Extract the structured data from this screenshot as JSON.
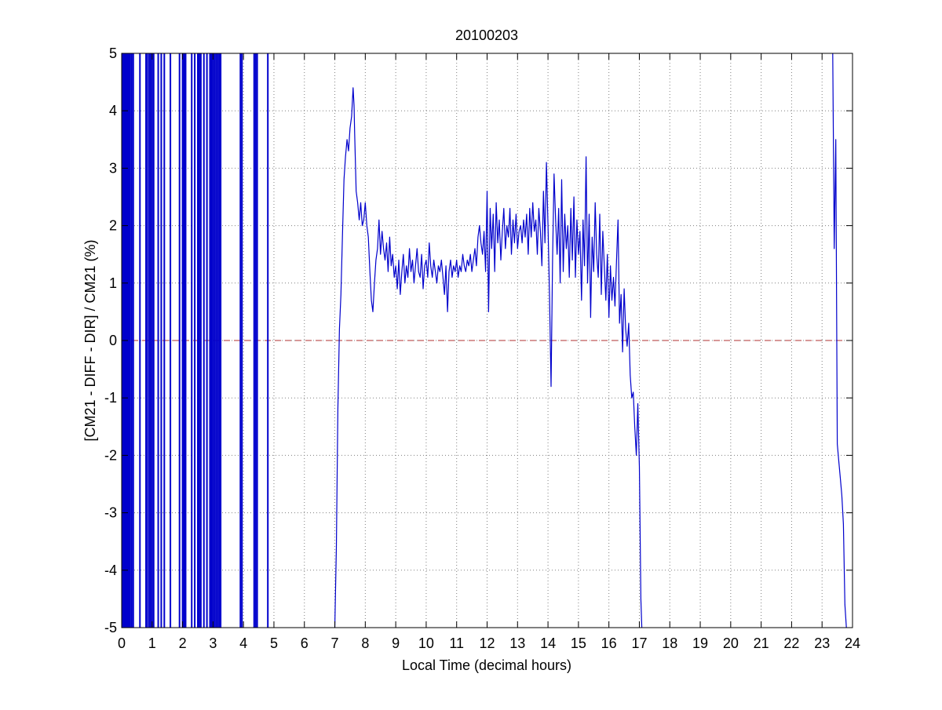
{
  "chart_data": {
    "type": "line",
    "title": "20100203",
    "xlabel": "Local Time (decimal hours)",
    "ylabel": "[CM21 - DIFF - DIR] / CM21 (%)",
    "xlim": [
      0,
      24
    ],
    "ylim": [
      -5,
      5
    ],
    "x_ticks": [
      0,
      1,
      2,
      3,
      4,
      5,
      6,
      7,
      8,
      9,
      10,
      11,
      12,
      13,
      14,
      15,
      16,
      17,
      18,
      19,
      20,
      21,
      22,
      23,
      24
    ],
    "x_tick_labels": [
      "0",
      "1",
      "2",
      "3",
      "4",
      "5",
      "6",
      "7",
      "8",
      "9",
      "10",
      "11",
      "12",
      "13",
      "14",
      "15",
      "16",
      "17",
      "18",
      "19",
      "20",
      "21",
      "22",
      "23",
      "24"
    ],
    "y_ticks": [
      -5,
      -4,
      -3,
      -2,
      -1,
      0,
      1,
      2,
      3,
      4,
      5
    ],
    "y_tick_labels": [
      "-5",
      "-4",
      "-3",
      "-2",
      "-1",
      "0",
      "1",
      "2",
      "3",
      "4",
      "5"
    ],
    "grid": true,
    "colors": {
      "series": "#0000cc",
      "reference": "#b03030",
      "grid": "#808080",
      "axes": "#000000"
    },
    "reference_line": {
      "y": 0,
      "style": "dashed"
    },
    "night_spikes_x": [
      0.02,
      0.05,
      0.09,
      0.12,
      0.16,
      0.2,
      0.24,
      0.28,
      0.33,
      0.38,
      0.6,
      0.8,
      0.84,
      0.9,
      0.95,
      1.0,
      1.05,
      1.2,
      1.3,
      1.4,
      1.6,
      1.9,
      2.0,
      2.05,
      2.1,
      2.3,
      2.4,
      2.5,
      2.55,
      2.6,
      2.7,
      2.8,
      2.9,
      2.95,
      3.0,
      3.05,
      3.1,
      3.15,
      3.2,
      3.25,
      3.9,
      3.95,
      4.35,
      4.4,
      4.45,
      4.8
    ],
    "series": [
      {
        "values": [
          [
            7.0,
            -5.0
          ],
          [
            7.05,
            -3.6
          ],
          [
            7.1,
            -1.2
          ],
          [
            7.15,
            0.2
          ],
          [
            7.2,
            0.8
          ],
          [
            7.25,
            1.8
          ],
          [
            7.3,
            2.8
          ],
          [
            7.35,
            3.2
          ],
          [
            7.4,
            3.5
          ],
          [
            7.45,
            3.3
          ],
          [
            7.5,
            3.7
          ],
          [
            7.55,
            3.9
          ],
          [
            7.6,
            4.4
          ],
          [
            7.63,
            4.1
          ],
          [
            7.65,
            3.6
          ],
          [
            7.7,
            2.6
          ],
          [
            7.75,
            2.4
          ],
          [
            7.8,
            2.1
          ],
          [
            7.85,
            2.4
          ],
          [
            7.9,
            2.0
          ],
          [
            7.95,
            2.1
          ],
          [
            8.0,
            2.4
          ],
          [
            8.05,
            2.0
          ],
          [
            8.1,
            1.8
          ],
          [
            8.15,
            1.2
          ],
          [
            8.2,
            0.7
          ],
          [
            8.25,
            0.5
          ],
          [
            8.3,
            1.0
          ],
          [
            8.35,
            1.4
          ],
          [
            8.4,
            1.6
          ],
          [
            8.45,
            2.1
          ],
          [
            8.5,
            1.5
          ],
          [
            8.55,
            1.9
          ],
          [
            8.6,
            1.6
          ],
          [
            8.65,
            1.4
          ],
          [
            8.7,
            1.7
          ],
          [
            8.75,
            1.2
          ],
          [
            8.8,
            1.8
          ],
          [
            8.85,
            1.3
          ],
          [
            8.9,
            1.5
          ],
          [
            8.95,
            1.1
          ],
          [
            9.0,
            1.3
          ],
          [
            9.05,
            0.9
          ],
          [
            9.1,
            1.4
          ],
          [
            9.15,
            0.8
          ],
          [
            9.2,
            1.2
          ],
          [
            9.25,
            1.5
          ],
          [
            9.3,
            1.0
          ],
          [
            9.35,
            1.3
          ],
          [
            9.4,
            1.1
          ],
          [
            9.45,
            1.6
          ],
          [
            9.5,
            1.2
          ],
          [
            9.55,
            1.4
          ],
          [
            9.6,
            1.0
          ],
          [
            9.65,
            1.3
          ],
          [
            9.7,
            1.6
          ],
          [
            9.75,
            1.2
          ],
          [
            9.8,
            1.1
          ],
          [
            9.85,
            1.5
          ],
          [
            9.9,
            0.9
          ],
          [
            9.95,
            1.3
          ],
          [
            10.0,
            1.4
          ],
          [
            10.05,
            1.1
          ],
          [
            10.1,
            1.7
          ],
          [
            10.15,
            1.3
          ],
          [
            10.2,
            1.1
          ],
          [
            10.25,
            1.4
          ],
          [
            10.3,
            1.2
          ],
          [
            10.35,
            1.0
          ],
          [
            10.4,
            1.3
          ],
          [
            10.45,
            1.2
          ],
          [
            10.5,
            1.4
          ],
          [
            10.55,
            1.1
          ],
          [
            10.6,
            0.8
          ],
          [
            10.65,
            1.3
          ],
          [
            10.7,
            0.5
          ],
          [
            10.75,
            1.2
          ],
          [
            10.8,
            1.4
          ],
          [
            10.85,
            1.1
          ],
          [
            10.9,
            1.3
          ],
          [
            10.95,
            1.2
          ],
          [
            11.0,
            1.4
          ],
          [
            11.05,
            1.1
          ],
          [
            11.1,
            1.3
          ],
          [
            11.15,
            1.2
          ],
          [
            11.2,
            1.5
          ],
          [
            11.25,
            1.3
          ],
          [
            11.3,
            1.2
          ],
          [
            11.35,
            1.4
          ],
          [
            11.4,
            1.3
          ],
          [
            11.45,
            1.5
          ],
          [
            11.5,
            1.2
          ],
          [
            11.55,
            1.4
          ],
          [
            11.6,
            1.6
          ],
          [
            11.65,
            1.3
          ],
          [
            11.7,
            1.8
          ],
          [
            11.75,
            2.0
          ],
          [
            11.8,
            1.7
          ],
          [
            11.85,
            1.5
          ],
          [
            11.9,
            1.9
          ],
          [
            11.95,
            1.2
          ],
          [
            12.0,
            2.6
          ],
          [
            12.05,
            0.5
          ],
          [
            12.1,
            2.3
          ],
          [
            12.15,
            1.6
          ],
          [
            12.2,
            2.2
          ],
          [
            12.25,
            1.2
          ],
          [
            12.3,
            2.4
          ],
          [
            12.35,
            1.7
          ],
          [
            12.4,
            2.1
          ],
          [
            12.45,
            1.4
          ],
          [
            12.5,
            1.9
          ],
          [
            12.55,
            2.3
          ],
          [
            12.6,
            1.6
          ],
          [
            12.65,
            2.0
          ],
          [
            12.7,
            1.8
          ],
          [
            12.75,
            2.3
          ],
          [
            12.8,
            1.5
          ],
          [
            12.85,
            2.1
          ],
          [
            12.9,
            1.7
          ],
          [
            12.95,
            2.2
          ],
          [
            13.0,
            1.6
          ],
          [
            13.05,
            1.9
          ],
          [
            13.1,
            2.0
          ],
          [
            13.15,
            1.7
          ],
          [
            13.2,
            2.1
          ],
          [
            13.25,
            1.8
          ],
          [
            13.3,
            2.2
          ],
          [
            13.35,
            1.5
          ],
          [
            13.4,
            2.3
          ],
          [
            13.45,
            1.8
          ],
          [
            13.5,
            2.4
          ],
          [
            13.55,
            1.9
          ],
          [
            13.6,
            2.1
          ],
          [
            13.65,
            1.5
          ],
          [
            13.7,
            2.3
          ],
          [
            13.75,
            1.9
          ],
          [
            13.8,
            1.3
          ],
          [
            13.85,
            2.6
          ],
          [
            13.9,
            1.7
          ],
          [
            13.95,
            3.1
          ],
          [
            14.0,
            2.0
          ],
          [
            14.05,
            0.8
          ],
          [
            14.1,
            -0.8
          ],
          [
            14.15,
            1.4
          ],
          [
            14.2,
            2.9
          ],
          [
            14.25,
            2.1
          ],
          [
            14.3,
            1.5
          ],
          [
            14.35,
            2.3
          ],
          [
            14.4,
            1.0
          ],
          [
            14.45,
            2.8
          ],
          [
            14.5,
            1.2
          ],
          [
            14.55,
            2.2
          ],
          [
            14.6,
            1.6
          ],
          [
            14.65,
            2.0
          ],
          [
            14.7,
            1.1
          ],
          [
            14.75,
            2.3
          ],
          [
            14.8,
            1.4
          ],
          [
            14.85,
            2.5
          ],
          [
            14.9,
            1.1
          ],
          [
            14.95,
            2.1
          ],
          [
            15.0,
            1.5
          ],
          [
            15.05,
            1.9
          ],
          [
            15.1,
            0.7
          ],
          [
            15.15,
            2.1
          ],
          [
            15.2,
            1.3
          ],
          [
            15.25,
            3.2
          ],
          [
            15.3,
            1.0
          ],
          [
            15.35,
            2.2
          ],
          [
            15.4,
            0.4
          ],
          [
            15.45,
            1.8
          ],
          [
            15.5,
            1.2
          ],
          [
            15.55,
            2.4
          ],
          [
            15.6,
            1.5
          ],
          [
            15.65,
            1.1
          ],
          [
            15.7,
            2.2
          ],
          [
            15.75,
            0.8
          ],
          [
            15.8,
            1.9
          ],
          [
            15.85,
            1.3
          ],
          [
            15.9,
            0.7
          ],
          [
            15.95,
            1.5
          ],
          [
            16.0,
            0.4
          ],
          [
            16.05,
            1.3
          ],
          [
            16.1,
            0.7
          ],
          [
            16.15,
            1.1
          ],
          [
            16.2,
            0.6
          ],
          [
            16.25,
            1.4
          ],
          [
            16.3,
            2.1
          ],
          [
            16.35,
            0.3
          ],
          [
            16.4,
            0.8
          ],
          [
            16.45,
            -0.2
          ],
          [
            16.5,
            0.9
          ],
          [
            16.55,
            0.2
          ],
          [
            16.6,
            -0.1
          ],
          [
            16.65,
            0.3
          ],
          [
            16.7,
            -0.6
          ],
          [
            16.75,
            -1.0
          ],
          [
            16.8,
            -0.9
          ],
          [
            16.85,
            -1.5
          ],
          [
            16.9,
            -2.0
          ],
          [
            16.95,
            -1.1
          ],
          [
            17.0,
            -2.2
          ],
          [
            17.05,
            -4.5
          ],
          [
            17.08,
            -5.0
          ]
        ]
      },
      {
        "values": [
          [
            23.35,
            5.0
          ],
          [
            23.4,
            1.6
          ],
          [
            23.45,
            3.5
          ],
          [
            23.5,
            -1.8
          ],
          [
            23.55,
            -2.1
          ],
          [
            23.6,
            -2.4
          ],
          [
            23.65,
            -2.7
          ],
          [
            23.7,
            -3.2
          ],
          [
            23.75,
            -4.6
          ],
          [
            23.8,
            -5.0
          ]
        ]
      }
    ]
  }
}
